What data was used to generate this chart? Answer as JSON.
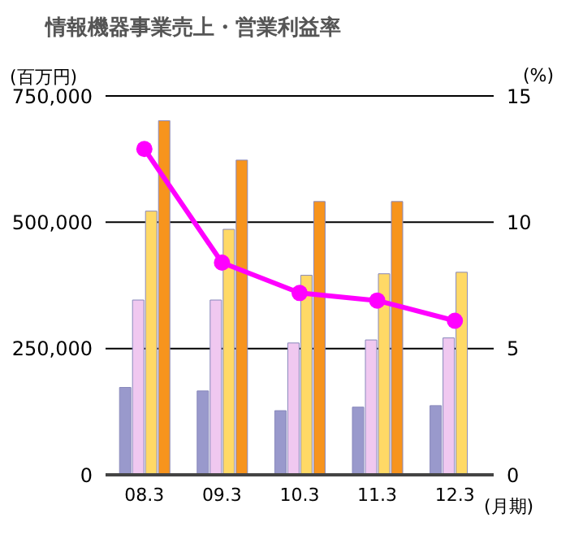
{
  "chart_data": {
    "type": "bar",
    "title": "情報機器事業売上・営業利益率",
    "ylabel": "(百万円)",
    "y2label": "(%)",
    "xlabel": "(月期)",
    "categories": [
      "08.3",
      "09.3",
      "10.3",
      "11.3",
      "12.3"
    ],
    "series": [
      {
        "color": "#9999cc",
        "values": [
          173000,
          166000,
          127000,
          134000,
          137000
        ]
      },
      {
        "color": "#f0c8f0",
        "values": [
          346000,
          346000,
          261000,
          267000,
          271000
        ]
      },
      {
        "color": "#ffd966",
        "values": [
          522000,
          486000,
          395000,
          398000,
          401000
        ]
      },
      {
        "color": "#f7941d",
        "values": [
          701000,
          623000,
          541000,
          541000,
          null
        ]
      },
      {
        "type": "line",
        "axis": "y2",
        "color": "#ff00ff",
        "values": [
          12.9,
          8.4,
          7.2,
          6.9,
          6.1
        ]
      }
    ],
    "ylim": [
      0,
      750000
    ],
    "yticks": [
      0,
      {
        "value": 250000,
        "label": "250,000"
      },
      {
        "value": 500000,
        "label": "500,000"
      },
      {
        "value": 750000,
        "label": "750,000"
      }
    ],
    "y2lim": [
      0,
      15
    ],
    "y2ticks": [
      0,
      5,
      10,
      15
    ],
    "grid": "y",
    "legend": false,
    "marker": "circle",
    "line_style": "solid"
  }
}
